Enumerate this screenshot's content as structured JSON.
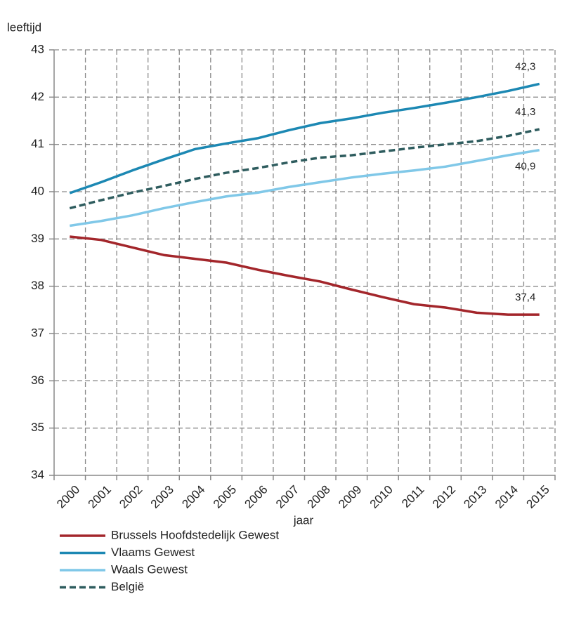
{
  "chart_data": {
    "type": "line",
    "y_label": "leeftijd",
    "x_label": "jaar",
    "categories": [
      "2000",
      "2001",
      "2002",
      "2003",
      "2004",
      "2005",
      "2006",
      "2007",
      "2008",
      "2009",
      "2010",
      "2011",
      "2012",
      "2013",
      "2014",
      "2015"
    ],
    "ylim": [
      34,
      43
    ],
    "yticks": [
      34,
      35,
      36,
      37,
      38,
      39,
      40,
      41,
      42,
      43
    ],
    "grid": true,
    "legend": "bottom",
    "series": [
      {
        "name": "Brussels Hoofdstedelijk Gewest",
        "color": "#a3262b",
        "dash": false,
        "values": [
          39.05,
          38.98,
          38.82,
          38.66,
          38.58,
          38.5,
          38.35,
          38.22,
          38.1,
          37.93,
          37.77,
          37.62,
          37.55,
          37.44,
          37.4,
          37.4
        ],
        "value_labels": [
          null,
          null,
          null,
          null,
          null,
          null,
          null,
          null,
          null,
          null,
          null,
          null,
          null,
          null,
          null,
          "37,4"
        ],
        "label_position": "above"
      },
      {
        "name": "Vlaams Gewest",
        "color": "#1c88b3",
        "dash": false,
        "values": [
          39.97,
          40.2,
          40.45,
          40.68,
          40.9,
          41.02,
          41.13,
          41.3,
          41.45,
          41.55,
          41.67,
          41.77,
          41.88,
          42.0,
          42.13,
          42.28
        ],
        "value_labels": [
          null,
          null,
          null,
          null,
          null,
          null,
          null,
          null,
          null,
          null,
          null,
          null,
          null,
          null,
          null,
          "42,3"
        ],
        "label_position": "above"
      },
      {
        "name": "Waals Gewest",
        "color": "#80c8e8",
        "dash": false,
        "values": [
          39.28,
          39.38,
          39.5,
          39.65,
          39.78,
          39.9,
          39.98,
          40.1,
          40.2,
          40.3,
          40.38,
          40.45,
          40.53,
          40.65,
          40.77,
          40.88
        ],
        "value_labels": [
          null,
          null,
          null,
          null,
          null,
          null,
          null,
          null,
          null,
          null,
          null,
          null,
          null,
          null,
          null,
          "40,9"
        ],
        "label_position": "below"
      },
      {
        "name": "België",
        "color": "#2e5c5e",
        "dash": true,
        "values": [
          39.65,
          39.82,
          39.98,
          40.12,
          40.27,
          40.4,
          40.5,
          40.62,
          40.72,
          40.77,
          40.85,
          40.93,
          41.0,
          41.07,
          41.18,
          41.32
        ],
        "value_labels": [
          null,
          null,
          null,
          null,
          null,
          null,
          null,
          null,
          null,
          null,
          null,
          null,
          null,
          null,
          null,
          "41,3"
        ],
        "label_position": "above"
      }
    ]
  }
}
